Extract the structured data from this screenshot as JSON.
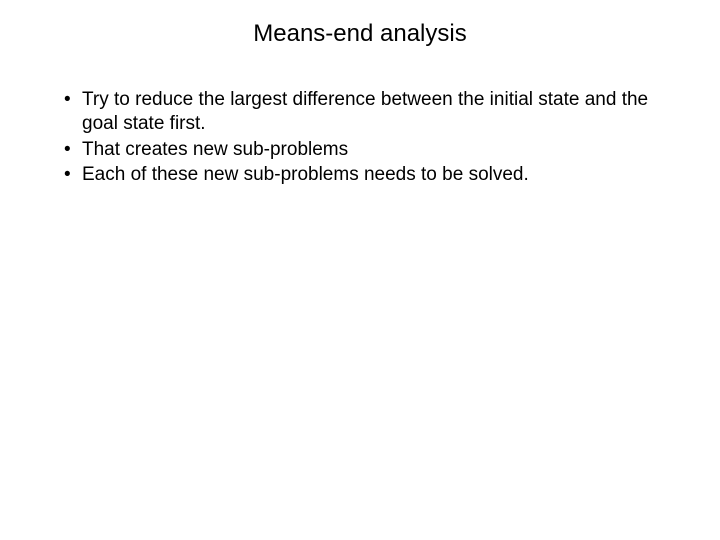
{
  "slide": {
    "title": "Means-end analysis",
    "bullets": [
      "Try to reduce the largest difference between the initial state and the goal state first.",
      "That creates new sub-problems",
      "Each of these new sub-problems needs to be solved."
    ],
    "title_fontsize": 24,
    "body_fontsize": 19,
    "text_color": "#000000",
    "background_color": "#ffffff",
    "font_family": "Arial"
  }
}
